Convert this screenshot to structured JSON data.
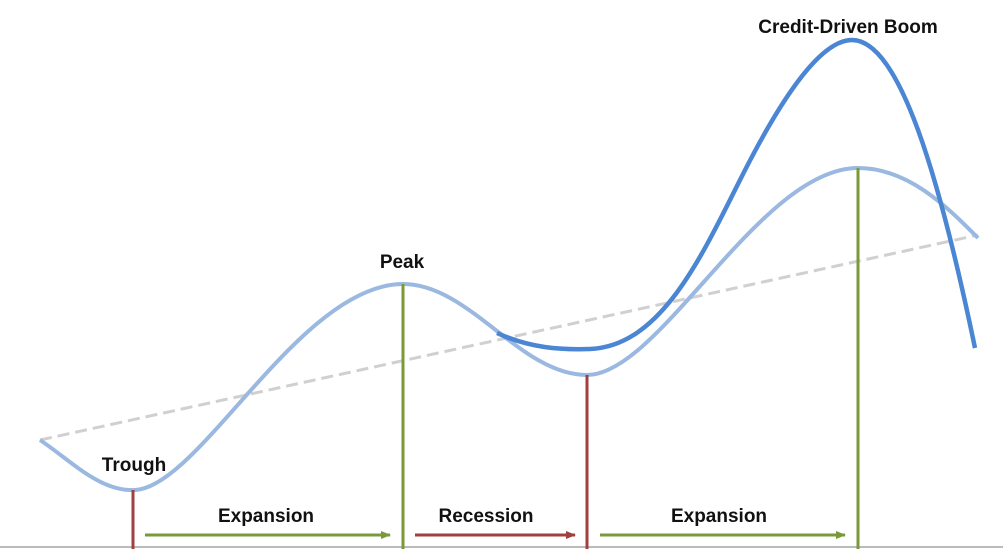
{
  "labels": {
    "boom": "Credit-Driven Boom",
    "peak": "Peak",
    "trough": "Trough"
  },
  "phases": [
    "Expansion",
    "Recession",
    "Expansion"
  ]
}
